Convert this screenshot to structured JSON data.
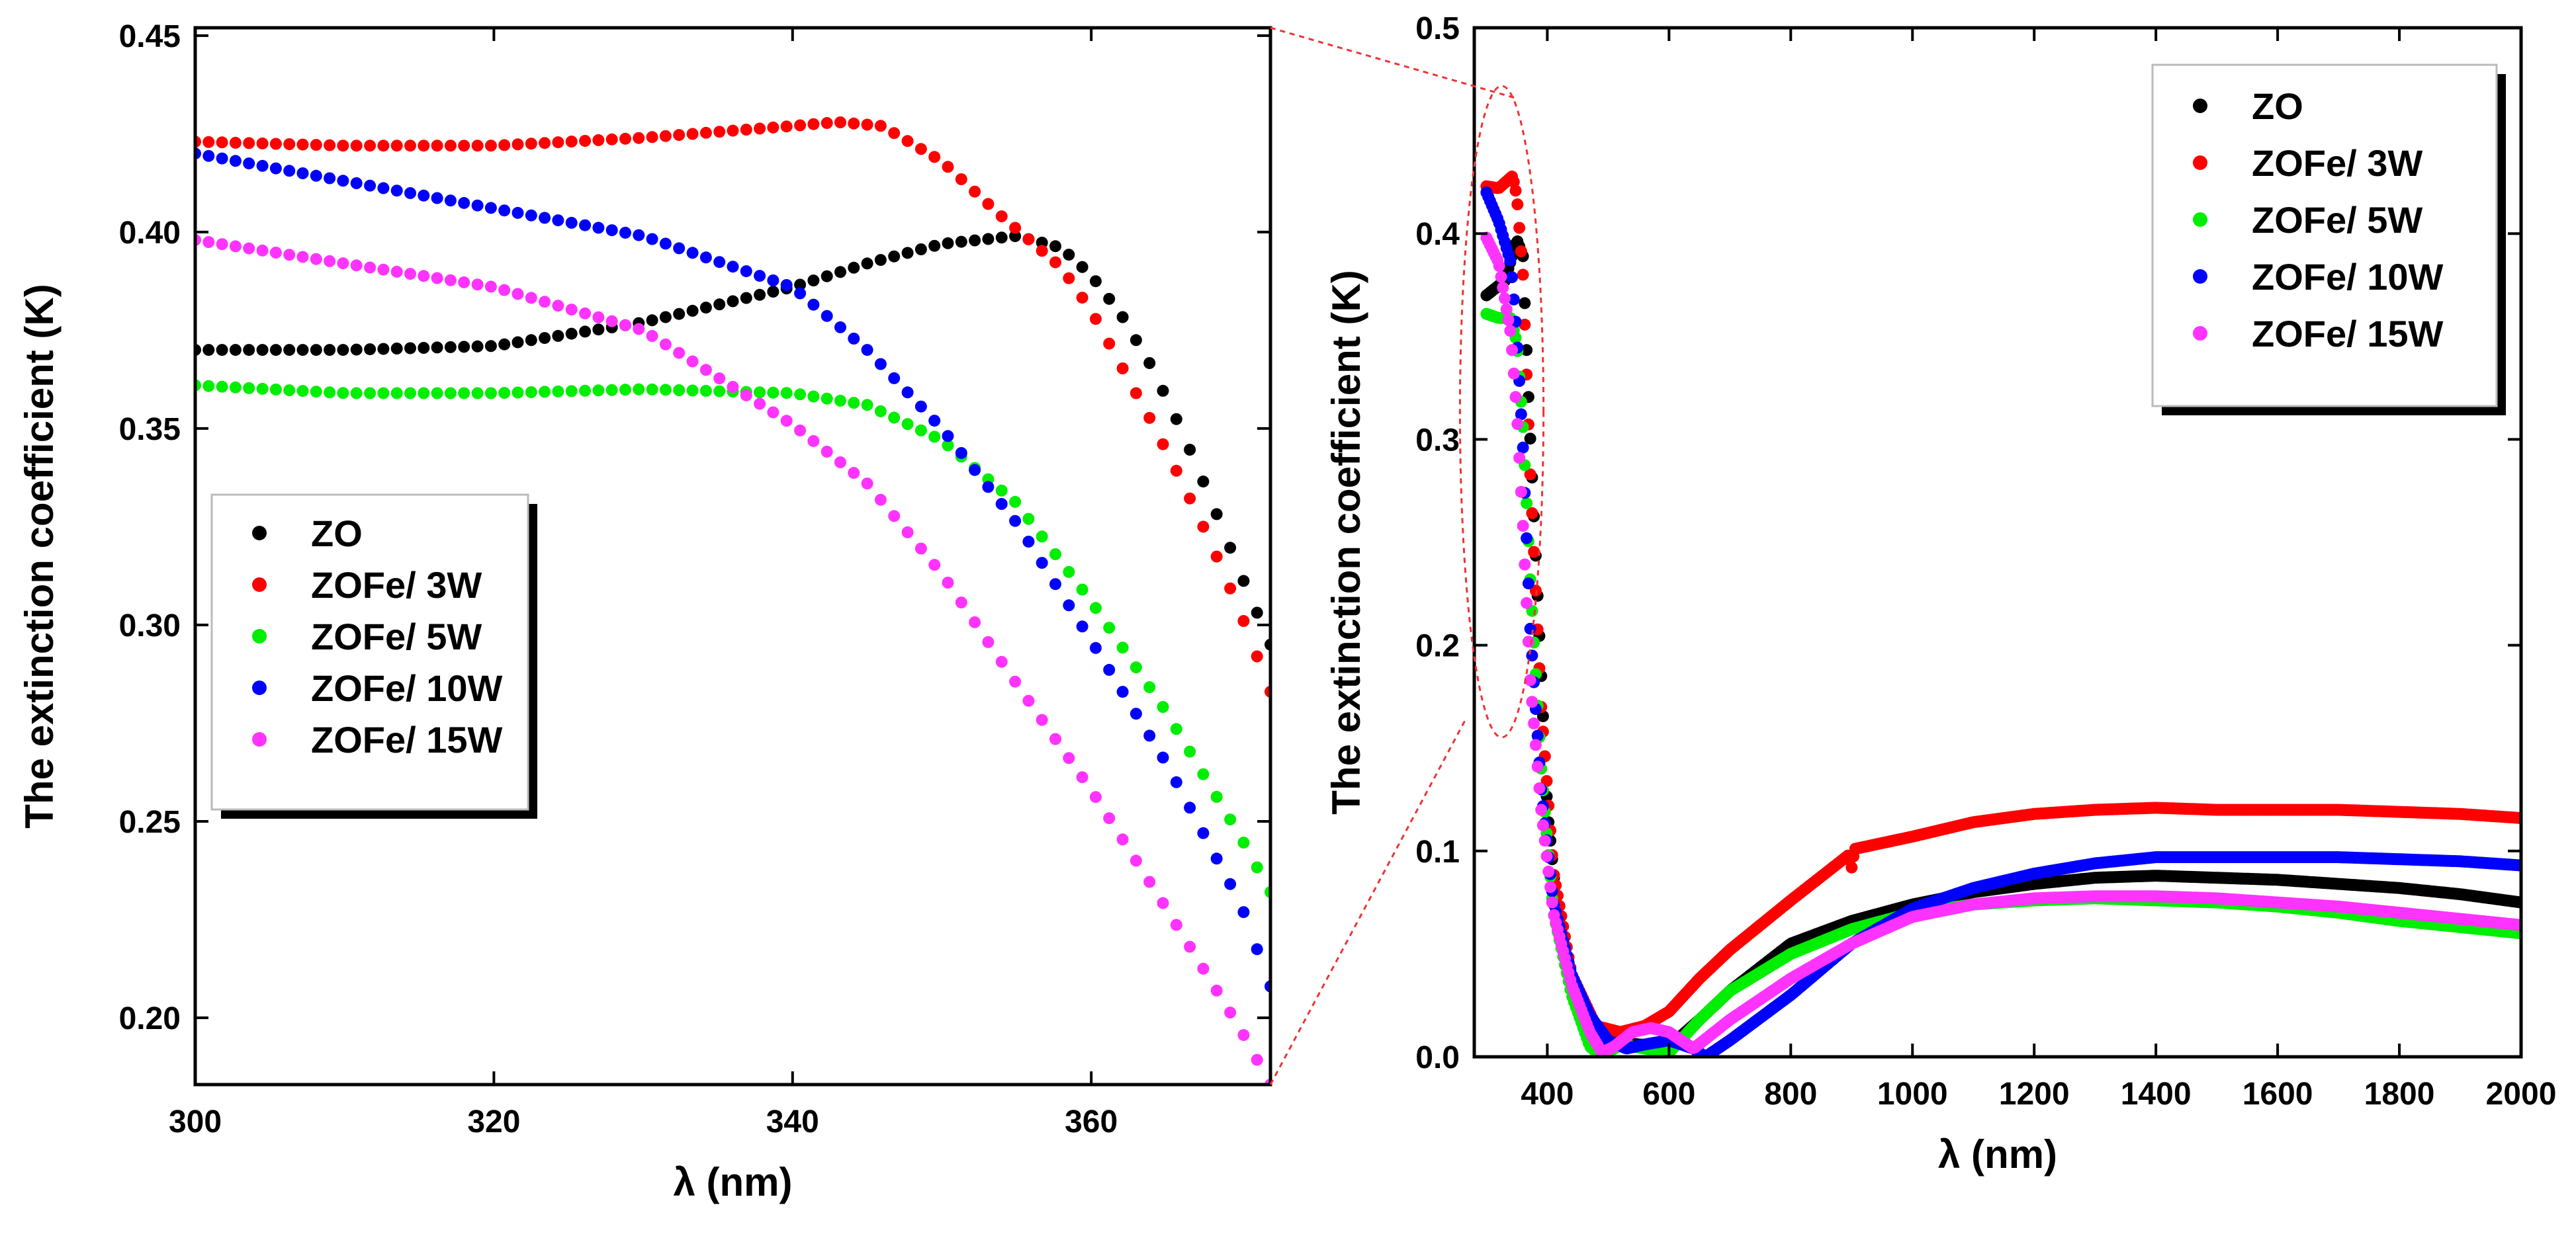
{
  "chart_data": [
    {
      "type": "scatter",
      "name": "zoom-panel",
      "title": "",
      "xlabel": "λ (nm)",
      "ylabel": "The extinction coefficient (K)",
      "xlim": [
        300,
        372
      ],
      "ylim": [
        0.183,
        0.452
      ],
      "xticks": [
        300,
        320,
        340,
        360
      ],
      "xtick_labels": [
        "300",
        "320",
        "340",
        "360"
      ],
      "yticks": [
        0.2,
        0.25,
        0.3,
        0.35,
        0.4,
        0.45
      ],
      "ytick_labels": [
        "0.20",
        "0.25",
        "0.30",
        "0.35",
        "0.40",
        "0.45"
      ],
      "grid": false,
      "legend_position": "center-left",
      "series": [
        {
          "name": "ZO",
          "color": "#000000",
          "x": [
            300,
            310,
            320,
            330,
            340,
            345,
            350,
            355,
            358,
            360,
            362,
            364,
            366,
            368,
            370,
            372
          ],
          "y": [
            0.37,
            0.37,
            0.371,
            0.377,
            0.386,
            0.392,
            0.397,
            0.399,
            0.396,
            0.389,
            0.379,
            0.366,
            0.35,
            0.332,
            0.313,
            0.295
          ]
        },
        {
          "name": "ZOFe/ 3W",
          "color": "#ff0000",
          "x": [
            300,
            310,
            320,
            330,
            340,
            343,
            346,
            350,
            354,
            358,
            360,
            362,
            364,
            366,
            368,
            370,
            372
          ],
          "y": [
            0.423,
            0.422,
            0.422,
            0.424,
            0.427,
            0.428,
            0.427,
            0.418,
            0.404,
            0.391,
            0.38,
            0.366,
            0.352,
            0.337,
            0.321,
            0.303,
            0.283
          ]
        },
        {
          "name": "ZOFe/ 5W",
          "color": "#00ee00",
          "x": [
            300,
            310,
            320,
            330,
            340,
            345,
            350,
            355,
            360,
            365,
            370,
            372
          ],
          "y": [
            0.361,
            0.359,
            0.359,
            0.36,
            0.359,
            0.356,
            0.347,
            0.331,
            0.306,
            0.278,
            0.246,
            0.232
          ]
        },
        {
          "name": "ZOFe/ 10W",
          "color": "#0000ff",
          "x": [
            300,
            310,
            320,
            330,
            340,
            345,
            350,
            355,
            360,
            365,
            370,
            372
          ],
          "y": [
            0.42,
            0.413,
            0.406,
            0.399,
            0.386,
            0.37,
            0.35,
            0.326,
            0.296,
            0.265,
            0.229,
            0.208
          ]
        },
        {
          "name": "ZOFe/ 15W",
          "color": "#ff33ff",
          "x": [
            300,
            310,
            320,
            330,
            340,
            345,
            350,
            355,
            360,
            365,
            370,
            372
          ],
          "y": [
            0.398,
            0.392,
            0.386,
            0.375,
            0.351,
            0.336,
            0.313,
            0.285,
            0.258,
            0.228,
            0.197,
            0.183
          ]
        }
      ]
    },
    {
      "type": "scatter",
      "name": "full-panel",
      "title": "",
      "xlabel": "λ (nm)",
      "ylabel": "The extinction coefficient (K)",
      "xlim": [
        280,
        2000
      ],
      "ylim": [
        0,
        0.5
      ],
      "xticks": [
        400,
        600,
        800,
        1000,
        1200,
        1400,
        1600,
        1800,
        2000
      ],
      "xtick_labels": [
        "400",
        "600",
        "800",
        "1000",
        "1200",
        "1400",
        "1600",
        "1800",
        "2000"
      ],
      "yticks": [
        0.0,
        0.1,
        0.2,
        0.3,
        0.4,
        0.5
      ],
      "ytick_labels": [
        "0.0",
        "0.1",
        "0.2",
        "0.3",
        "0.4",
        "0.5"
      ],
      "grid": false,
      "legend_position": "top-right",
      "series": [
        {
          "name": "ZO",
          "color": "#000000",
          "x": [
            300,
            330,
            350,
            360,
            370,
            380,
            400,
            420,
            450,
            480,
            500,
            550,
            600,
            650,
            700,
            800,
            900,
            1000,
            1100,
            1200,
            1300,
            1400,
            1500,
            1600,
            1700,
            1800,
            1900,
            2000
          ],
          "y": [
            0.37,
            0.377,
            0.397,
            0.389,
            0.313,
            0.25,
            0.12,
            0.06,
            0.025,
            0.012,
            0.008,
            0.006,
            0.005,
            0.018,
            0.032,
            0.055,
            0.066,
            0.074,
            0.08,
            0.084,
            0.087,
            0.088,
            0.087,
            0.086,
            0.084,
            0.082,
            0.079,
            0.075
          ]
        },
        {
          "name": "ZOFe/ 3W",
          "color": "#ff0000",
          "x": [
            300,
            320,
            343,
            350,
            360,
            372,
            390,
            410,
            440,
            480,
            520,
            560,
            600,
            650,
            700,
            800,
            895,
            900,
            905,
            1000,
            1100,
            1200,
            1300,
            1400,
            1500,
            1600,
            1700,
            1800,
            1900,
            2000
          ],
          "y": [
            0.423,
            0.422,
            0.428,
            0.418,
            0.38,
            0.283,
            0.17,
            0.09,
            0.04,
            0.015,
            0.012,
            0.015,
            0.022,
            0.038,
            0.052,
            0.076,
            0.098,
            0.092,
            0.101,
            0.107,
            0.114,
            0.118,
            0.12,
            0.121,
            0.12,
            0.12,
            0.12,
            0.119,
            0.118,
            0.116
          ]
        },
        {
          "name": "ZOFe/ 5W",
          "color": "#00ee00",
          "x": [
            300,
            320,
            340,
            350,
            360,
            372,
            390,
            410,
            440,
            470,
            490,
            520,
            560,
            600,
            650,
            700,
            800,
            900,
            1000,
            1100,
            1200,
            1300,
            1400,
            1500,
            1600,
            1700,
            1800,
            1900,
            2000
          ],
          "y": [
            0.361,
            0.359,
            0.359,
            0.347,
            0.306,
            0.232,
            0.14,
            0.07,
            0.03,
            0.005,
            0.0,
            0.006,
            0.004,
            0.002,
            0.018,
            0.032,
            0.05,
            0.062,
            0.07,
            0.074,
            0.076,
            0.077,
            0.076,
            0.075,
            0.073,
            0.07,
            0.066,
            0.063,
            0.06
          ]
        },
        {
          "name": "ZOFe/ 10W",
          "color": "#0000ff",
          "x": [
            300,
            320,
            340,
            350,
            360,
            372,
            390,
            410,
            440,
            470,
            500,
            530,
            560,
            600,
            640,
            660,
            700,
            800,
            900,
            1000,
            1100,
            1200,
            1300,
            1400,
            1500,
            1600,
            1700,
            1800,
            1900,
            2000
          ],
          "y": [
            0.42,
            0.406,
            0.386,
            0.35,
            0.296,
            0.208,
            0.13,
            0.075,
            0.04,
            0.02,
            0.008,
            0.004,
            0.006,
            0.008,
            0.004,
            0.0,
            0.008,
            0.03,
            0.055,
            0.072,
            0.082,
            0.089,
            0.094,
            0.097,
            0.097,
            0.097,
            0.097,
            0.096,
            0.095,
            0.093
          ]
        },
        {
          "name": "ZOFe/ 15W",
          "color": "#ff33ff",
          "x": [
            300,
            320,
            340,
            350,
            360,
            372,
            390,
            410,
            440,
            470,
            490,
            510,
            540,
            570,
            600,
            640,
            700,
            800,
            900,
            1000,
            1100,
            1200,
            1300,
            1400,
            1500,
            1600,
            1700,
            1800,
            1900,
            2000
          ],
          "y": [
            0.398,
            0.386,
            0.351,
            0.313,
            0.258,
            0.183,
            0.12,
            0.07,
            0.035,
            0.012,
            0.002,
            0.005,
            0.012,
            0.014,
            0.012,
            0.004,
            0.018,
            0.038,
            0.055,
            0.068,
            0.074,
            0.077,
            0.078,
            0.078,
            0.077,
            0.075,
            0.073,
            0.07,
            0.067,
            0.064
          ]
        }
      ]
    }
  ]
}
